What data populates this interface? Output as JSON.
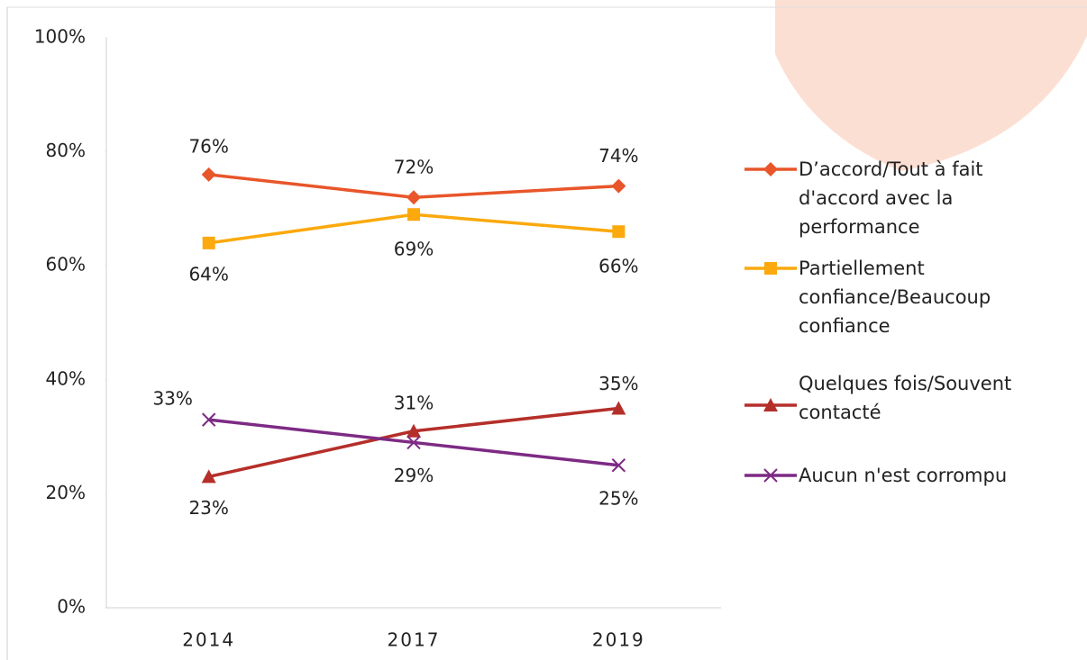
{
  "chart_data": {
    "type": "line",
    "categories": [
      "2014",
      "2017",
      "2019"
    ],
    "series": [
      {
        "name": "D’accord/Tout à fait d'accord avec la performance",
        "color": "#e8562a",
        "marker": "diamond",
        "values": [
          76,
          72,
          74
        ],
        "value_labels": [
          "76%",
          "72%",
          "74%"
        ]
      },
      {
        "name": "Partiellement confiance/Beaucoup confiance",
        "color": "#fba90d",
        "marker": "square",
        "values": [
          64,
          69,
          66
        ],
        "value_labels": [
          "64%",
          "69%",
          "66%"
        ]
      },
      {
        "name": "Quelques fois/Souvent contacté",
        "color": "#b52f2a",
        "marker": "triangle",
        "values": [
          23,
          31,
          35
        ],
        "value_labels": [
          "23%",
          "31%",
          "35%"
        ]
      },
      {
        "name": "Aucun n'est corrompu",
        "color": "#7d2a84",
        "marker": "x",
        "values": [
          33,
          29,
          25
        ],
        "value_labels": [
          "33%",
          "29%",
          "25%"
        ]
      }
    ],
    "ylim": [
      0,
      100
    ],
    "yticks": [
      {
        "value": 0,
        "label": "0%"
      },
      {
        "value": 20,
        "label": "20%"
      },
      {
        "value": 40,
        "label": "40%"
      },
      {
        "value": 60,
        "label": "60%"
      },
      {
        "value": 80,
        "label": "80%"
      },
      {
        "value": 100,
        "label": "100%"
      }
    ],
    "grid": false
  }
}
